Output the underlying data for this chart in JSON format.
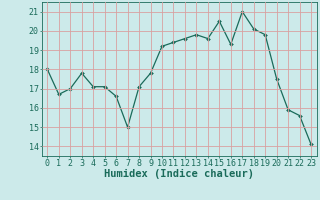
{
  "xlabel": "Humidex (Indice chaleur)",
  "x": [
    0,
    1,
    2,
    3,
    4,
    5,
    6,
    7,
    8,
    9,
    10,
    11,
    12,
    13,
    14,
    15,
    16,
    17,
    18,
    19,
    20,
    21,
    22,
    23
  ],
  "y": [
    18.0,
    16.7,
    17.0,
    17.8,
    17.1,
    17.1,
    16.6,
    15.0,
    17.1,
    17.8,
    19.2,
    19.4,
    19.6,
    19.8,
    19.6,
    20.5,
    19.3,
    21.0,
    20.1,
    19.8,
    17.5,
    15.9,
    15.6,
    14.1
  ],
  "line_color": "#1a6b5a",
  "marker": "D",
  "marker_size": 2,
  "bg_color": "#cceaea",
  "grid_color": "#d9a0a0",
  "ylim": [
    13.5,
    21.5
  ],
  "yticks": [
    14,
    15,
    16,
    17,
    18,
    19,
    20,
    21
  ],
  "xlim": [
    -0.5,
    23.5
  ],
  "xticks": [
    0,
    1,
    2,
    3,
    4,
    5,
    6,
    7,
    8,
    9,
    10,
    11,
    12,
    13,
    14,
    15,
    16,
    17,
    18,
    19,
    20,
    21,
    22,
    23
  ],
  "tick_label_fontsize": 6,
  "xlabel_fontsize": 7.5,
  "label_color": "#1a6b5a"
}
